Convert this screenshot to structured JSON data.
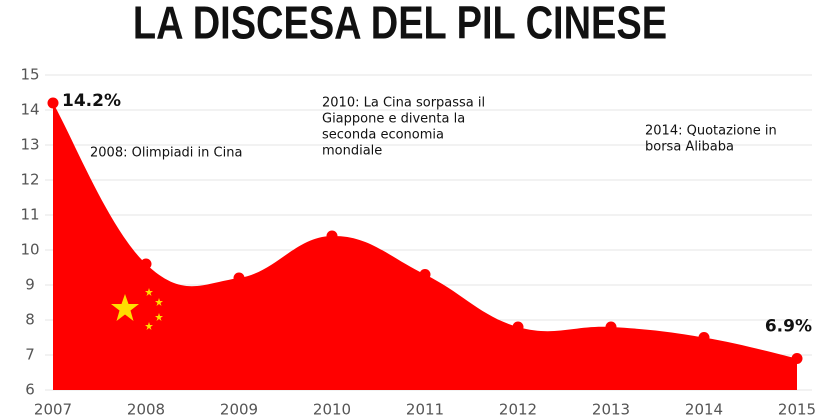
{
  "chart_data": {
    "type": "area",
    "title": "LA DISCESA DEL PIL CINESE",
    "categories": [
      "2007",
      "2008",
      "2009",
      "2010",
      "2011",
      "2012",
      "2013",
      "2014",
      "2015"
    ],
    "values": [
      14.2,
      9.6,
      9.2,
      10.4,
      9.3,
      7.8,
      7.8,
      7.5,
      6.9
    ],
    "value_labels": [
      "14.2%",
      null,
      null,
      null,
      null,
      null,
      null,
      null,
      "6.9%"
    ],
    "color": "#ff0000",
    "ylim": [
      6,
      15
    ],
    "yticks": [
      6,
      7,
      8,
      9,
      10,
      11,
      12,
      13,
      14,
      15
    ],
    "grid": true,
    "annotations": [
      {
        "lines": [
          "2008: Olimpiadi in Cina"
        ]
      },
      {
        "lines": [
          "2010: La Cina sorpassa il",
          "Giappone e diventa la",
          "seconda economia",
          "mondiale"
        ]
      },
      {
        "lines": [
          "2014: Quotazione in",
          "borsa Alibaba"
        ]
      }
    ]
  }
}
